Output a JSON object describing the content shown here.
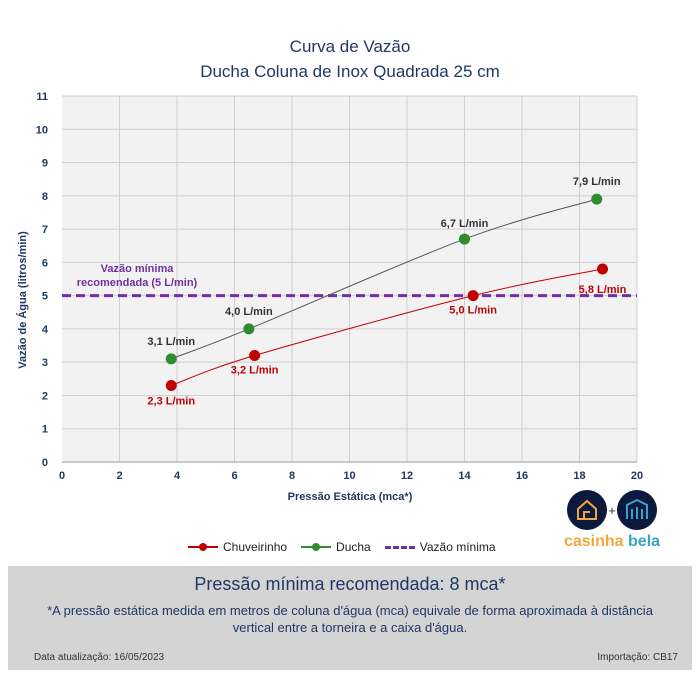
{
  "chart_data": {
    "type": "line",
    "title": "Curva de Vazão",
    "subtitle": "Ducha Coluna de Inox Quadrada 25 cm",
    "xlabel": "Pressão Estática (mca*)",
    "ylabel": "Vazão de Água (litros/min)",
    "xlim": [
      0,
      20
    ],
    "ylim": [
      0,
      11
    ],
    "xticks": [
      0,
      2,
      4,
      6,
      8,
      10,
      12,
      14,
      16,
      18,
      20
    ],
    "yticks": [
      0,
      1,
      2,
      3,
      4,
      5,
      6,
      7,
      8,
      9,
      10,
      11
    ],
    "grid": true,
    "legend": "bottom",
    "series": [
      {
        "name": "Chuveirinho",
        "color": "#c00000",
        "x": [
          3.8,
          6.7,
          14.3,
          18.8
        ],
        "y": [
          2.3,
          3.2,
          5.0,
          5.8
        ],
        "labels": [
          "2,3 L/min",
          "3,2 L/min",
          "5,0 L/min",
          "5,8 L/min"
        ]
      },
      {
        "name": "Ducha",
        "color": "#2e8b2e",
        "x": [
          3.8,
          6.5,
          14.0,
          18.6
        ],
        "y": [
          3.1,
          4.0,
          6.7,
          7.9
        ],
        "labels": [
          "3,1 L/min",
          "4,0 L/min",
          "6,7 L/min",
          "7,9 L/min"
        ]
      }
    ],
    "reference_line": {
      "name": "Vazão mínima",
      "y": 5,
      "color": "#7030a0",
      "annotation": [
        "Vazão mínima",
        "recomendada (5 L/min)"
      ]
    }
  },
  "logo": {
    "text_a": "casinha",
    "text_b": "bela",
    "plus": "+"
  },
  "footer": {
    "title": "Pressão mínima recomendada: 8 mca*",
    "note": "*A pressão estática medida em metros de coluna d'água (mca) equivale de forma aproximada à distância vertical entre a torneira e a caixa d'água.",
    "date": "Data atualização: 16/05/2023",
    "import": "Importação: CB17"
  }
}
